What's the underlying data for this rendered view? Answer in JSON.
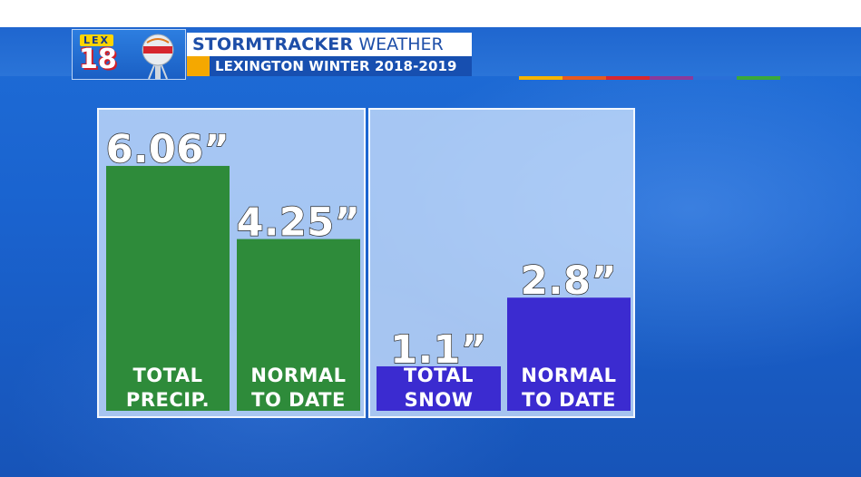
{
  "header": {
    "logo_lex": "LEX",
    "logo_number": "18",
    "title_bold": "STORMTRACKER",
    "title_regular": "WEATHER",
    "subtitle": "LEXINGTON WINTER 2018-2019"
  },
  "colors": {
    "bar_green": "#2e8b3a",
    "bar_blue": "#3b2bd0",
    "strip": [
      "#f6b400",
      "#e8591e",
      "#d9262e",
      "#8b3a9a",
      "#2a6fd8",
      "#3aa83a"
    ]
  },
  "icons": [
    "lex18-logo-icon",
    "water-tower-icon"
  ],
  "chart_data": [
    {
      "type": "bar",
      "categories": [
        "TOTAL\nPRECIP.",
        "NORMAL\nTO DATE"
      ],
      "values": [
        6.06,
        4.25
      ],
      "value_labels": [
        "6.06”",
        "4.25”"
      ],
      "ylim": [
        0,
        7.45
      ]
    },
    {
      "type": "bar",
      "categories": [
        "TOTAL\nSNOW",
        "NORMAL\nTO DATE"
      ],
      "values": [
        1.1,
        2.8
      ],
      "value_labels": [
        "1.1”",
        "2.8”"
      ],
      "ylim": [
        0,
        7.45
      ]
    }
  ]
}
